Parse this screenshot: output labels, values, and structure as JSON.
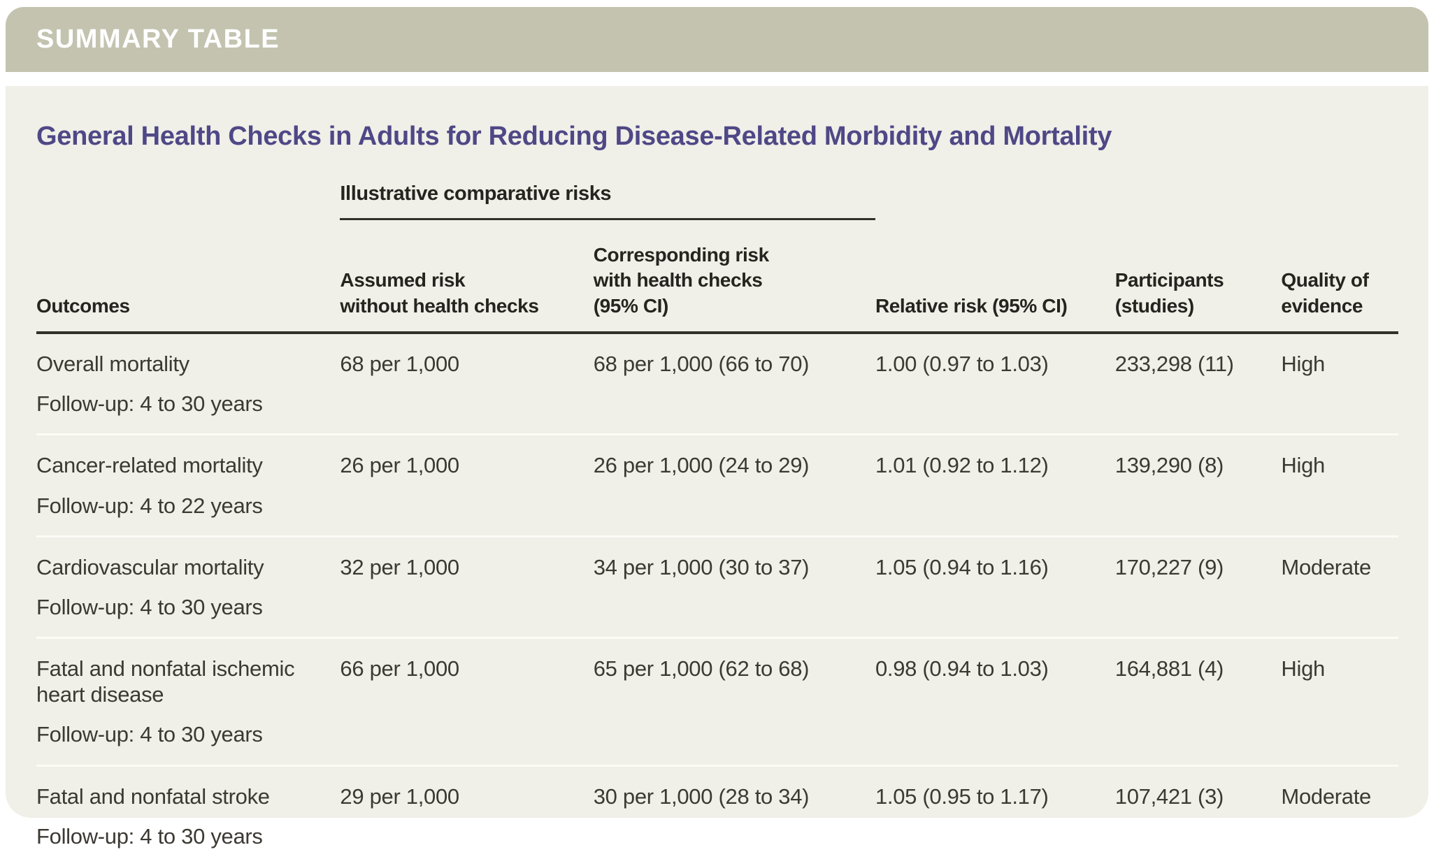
{
  "banner": {
    "label": "SUMMARY TABLE"
  },
  "title": "General Health Checks in Adults for Reducing Disease-Related Morbidity and Mortality",
  "table": {
    "group_header": "Illustrative comparative risks",
    "columns": {
      "outcomes": "Outcomes",
      "assumed": "Assumed risk\nwithout health checks",
      "corresponding": "Corresponding risk\nwith health checks\n(95% CI)",
      "relative": "Relative risk (95% CI)",
      "participants": "Participants\n(studies)",
      "quality": "Quality of\nevidence"
    },
    "rows": [
      {
        "outcome": "Overall mortality",
        "followup": "Follow-up: 4 to 30 years",
        "assumed": "68 per 1,000",
        "corresponding": "68 per 1,000 (66 to 70)",
        "relative": "1.00 (0.97 to 1.03)",
        "participants": "233,298 (11)",
        "quality": "High"
      },
      {
        "outcome": "Cancer-related mortality",
        "followup": "Follow-up: 4 to 22 years",
        "assumed": "26 per 1,000",
        "corresponding": "26 per 1,000 (24 to 29)",
        "relative": "1.01 (0.92 to 1.12)",
        "participants": "139,290 (8)",
        "quality": "High"
      },
      {
        "outcome": "Cardiovascular mortality",
        "followup": "Follow-up: 4 to 30 years",
        "assumed": "32 per 1,000",
        "corresponding": "34 per 1,000 (30 to 37)",
        "relative": "1.05 (0.94 to 1.16)",
        "participants": "170,227 (9)",
        "quality": "Moderate"
      },
      {
        "outcome": "Fatal and nonfatal ischemic heart disease",
        "followup": "Follow-up: 4 to 30 years",
        "assumed": "66 per 1,000",
        "corresponding": "65 per 1,000 (62 to 68)",
        "relative": "0.98 (0.94 to 1.03)",
        "participants": "164,881 (4)",
        "quality": "High"
      },
      {
        "outcome": "Fatal and nonfatal stroke",
        "followup": "Follow-up: 4 to 30 years",
        "assumed": "29 per 1,000",
        "corresponding": "30 per 1,000 (28 to 34)",
        "relative": "1.05 (0.95 to 1.17)",
        "participants": "107,421 (3)",
        "quality": "Moderate"
      }
    ]
  },
  "colors": {
    "banner_bg": "#c4c3b0",
    "panel_bg": "#f0efe8",
    "title_accent": "#4f4886",
    "rule_dark": "#32302a",
    "row_separator": "#fcfbf6"
  }
}
